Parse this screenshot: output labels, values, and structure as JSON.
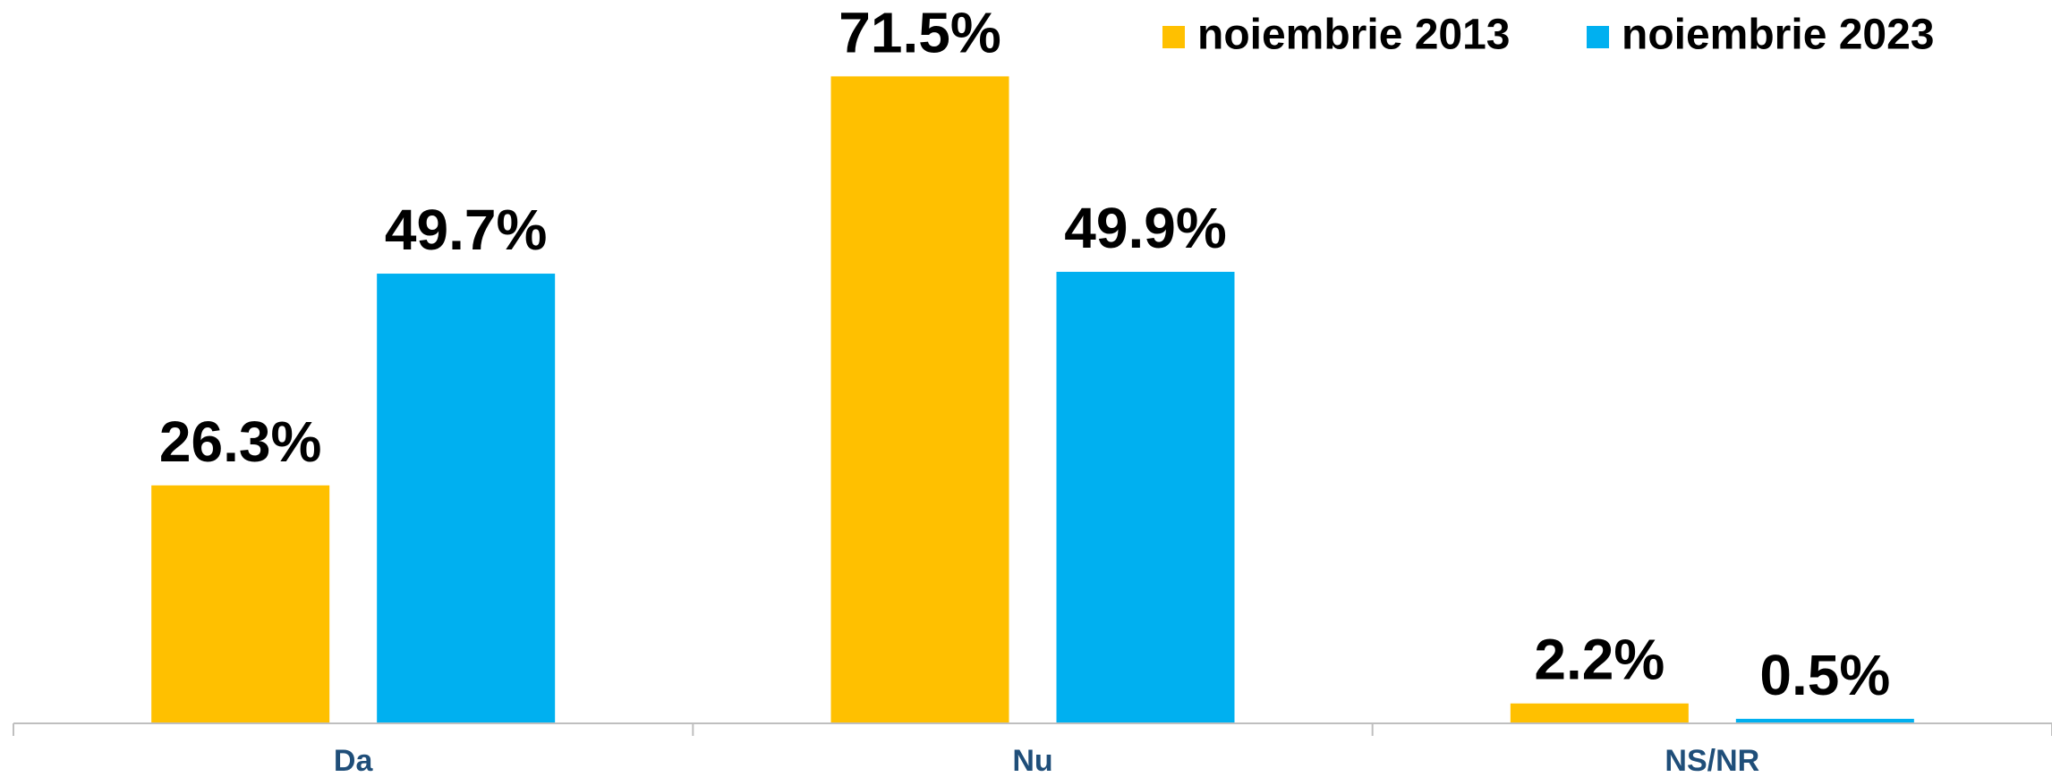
{
  "chart_data": {
    "type": "bar",
    "categories": [
      "Da",
      "Nu",
      "NS/NR"
    ],
    "series": [
      {
        "name": "noiembrie 2013",
        "color": "#ffc000",
        "values": [
          26.3,
          71.5,
          2.2
        ],
        "value_labels": [
          "26.3%",
          "71.5%",
          "2.2%"
        ]
      },
      {
        "name": "noiembrie 2023",
        "color": "#00b0f0",
        "values": [
          49.7,
          49.9,
          0.5
        ],
        "value_labels": [
          "49.7%",
          "49.9%",
          "0.5%"
        ]
      }
    ],
    "legend": "top-right"
  }
}
